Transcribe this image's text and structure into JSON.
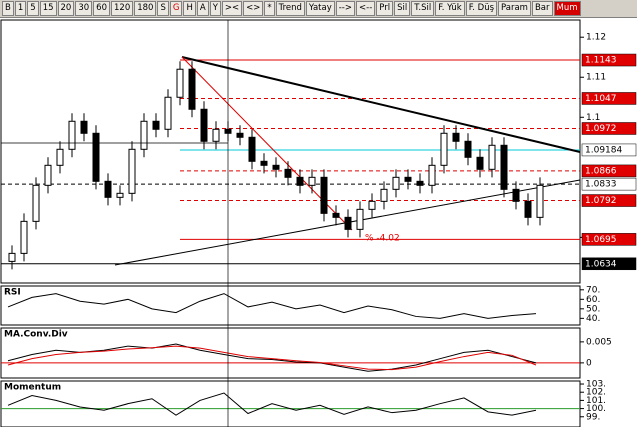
{
  "toolbar": {
    "buttons": [
      "B",
      "1",
      "5",
      "15",
      "20",
      "30",
      "60",
      "120",
      "180",
      "S",
      "G",
      "H",
      "A",
      "Y",
      "><",
      "<>",
      "*",
      "Trend",
      "Yatay",
      "-->",
      "<--",
      "Prl",
      "Sil",
      "T.Sil",
      "F. Yük",
      "F. Düş",
      "Param",
      "Bar",
      "Mum"
    ],
    "highlight_color": "#d40000"
  },
  "chart_data": [
    {
      "type": "candlestick",
      "ylim": [
        1.0586,
        1.1243
      ],
      "yticks": [
        1.12,
        1.11,
        1.1,
        1.07
      ],
      "open": [
        1.064,
        1.066,
        1.074,
        1.083,
        1.088,
        1.092,
        1.099,
        1.096,
        1.084,
        1.08,
        1.081,
        1.092,
        1.099,
        1.097,
        1.105,
        1.112,
        1.102,
        1.094,
        1.097,
        1.096,
        1.095,
        1.089,
        1.088,
        1.087,
        1.085,
        1.083,
        1.085,
        1.076,
        1.075,
        1.072,
        1.077,
        1.079,
        1.082,
        1.085,
        1.084,
        1.083,
        1.088,
        1.096,
        1.094,
        1.09,
        1.087,
        1.093,
        1.082,
        1.079,
        1.075
      ],
      "high": [
        1.068,
        1.076,
        1.085,
        1.09,
        1.094,
        1.101,
        1.101,
        1.098,
        1.086,
        1.083,
        1.094,
        1.101,
        1.101,
        1.107,
        1.114,
        1.114,
        1.104,
        1.099,
        1.099,
        1.098,
        1.097,
        1.091,
        1.09,
        1.089,
        1.087,
        1.087,
        1.087,
        1.078,
        1.077,
        1.079,
        1.081,
        1.084,
        1.087,
        1.087,
        1.086,
        1.09,
        1.098,
        1.098,
        1.096,
        1.092,
        1.095,
        1.095,
        1.084,
        1.081,
        1.085
      ],
      "low": [
        1.062,
        1.064,
        1.072,
        1.081,
        1.086,
        1.09,
        1.094,
        1.082,
        1.078,
        1.078,
        1.079,
        1.09,
        1.095,
        1.095,
        1.103,
        1.1,
        1.092,
        1.092,
        1.094,
        1.093,
        1.087,
        1.086,
        1.085,
        1.083,
        1.081,
        1.081,
        1.074,
        1.073,
        1.07,
        1.07,
        1.075,
        1.077,
        1.08,
        1.082,
        1.081,
        1.081,
        1.086,
        1.092,
        1.088,
        1.085,
        1.085,
        1.08,
        1.077,
        1.073,
        1.073
      ],
      "close": [
        1.066,
        1.074,
        1.083,
        1.088,
        1.092,
        1.099,
        1.096,
        1.084,
        1.08,
        1.081,
        1.092,
        1.099,
        1.097,
        1.105,
        1.112,
        1.102,
        1.094,
        1.097,
        1.096,
        1.095,
        1.089,
        1.088,
        1.087,
        1.085,
        1.083,
        1.085,
        1.076,
        1.075,
        1.072,
        1.077,
        1.079,
        1.082,
        1.085,
        1.084,
        1.083,
        1.088,
        1.096,
        1.094,
        1.09,
        1.087,
        1.093,
        1.082,
        1.079,
        1.075,
        1.083
      ],
      "levels": [
        {
          "value": 1.1143,
          "color": "#e00000",
          "style": "solid"
        },
        {
          "value": 1.1047,
          "color": "#e00000",
          "style": "dashed"
        },
        {
          "value": 1.0972,
          "color": "#e00000",
          "style": "dashed"
        },
        {
          "value": 1.09184,
          "color": "#00c8d8",
          "style": "solid"
        },
        {
          "value": 1.0866,
          "color": "#e00000",
          "style": "dashed"
        },
        {
          "value": 1.0833,
          "color": "#000000",
          "style": "dashed"
        },
        {
          "value": 1.0792,
          "color": "#e00000",
          "style": "dashed"
        },
        {
          "value": 1.0695,
          "color": "#e00000",
          "style": "solid"
        },
        {
          "value": 1.0634,
          "color": "#000000",
          "style": "solid"
        }
      ],
      "annotation": "% -4.02"
    },
    {
      "type": "line",
      "title": "RSI",
      "ylim": [
        33,
        74
      ],
      "yticks": [
        {
          "value": 70,
          "label": "70."
        },
        {
          "value": 60,
          "label": "60."
        },
        {
          "value": 50,
          "label": "50."
        },
        {
          "value": 40,
          "label": "40."
        }
      ],
      "series": [
        {
          "color": "#000000",
          "values": [
            52,
            62,
            66,
            58,
            55,
            60,
            50,
            46,
            58,
            66,
            52,
            57,
            50,
            54,
            46,
            53,
            49,
            42,
            40,
            45,
            40,
            43,
            45
          ]
        }
      ]
    },
    {
      "type": "line",
      "title": "MA.Conv.Div",
      "ylim": [
        -0.0036,
        0.0083
      ],
      "yticks": [
        0.005,
        0
      ],
      "ref_line": {
        "value": 0,
        "color": "#e00000"
      },
      "series": [
        {
          "color": "#000000",
          "values": [
            0.0005,
            0.002,
            0.003,
            0.0025,
            0.003,
            0.004,
            0.0035,
            0.0045,
            0.003,
            0.002,
            0.001,
            0.0008,
            0.0002,
            0,
            -0.001,
            -0.002,
            -0.0015,
            -0.0005,
            0.001,
            0.0025,
            0.003,
            0.0015,
            0
          ]
        },
        {
          "color": "#e00000",
          "values": [
            -0.0005,
            0.001,
            0.002,
            0.0025,
            0.0028,
            0.0033,
            0.0036,
            0.004,
            0.0035,
            0.0025,
            0.0015,
            0.001,
            0.0005,
            0.0001,
            -0.0007,
            -0.0015,
            -0.0016,
            -0.001,
            0.0003,
            0.0015,
            0.0025,
            0.0018,
            -0.0005
          ]
        }
      ]
    },
    {
      "type": "line",
      "title": "Momentum",
      "ylim": [
        97.75,
        103.37
      ],
      "yticks": [
        {
          "value": 103,
          "label": "103."
        },
        {
          "value": 102,
          "label": "102."
        },
        {
          "value": 101,
          "label": "101."
        },
        {
          "value": 100,
          "label": "100."
        },
        {
          "value": 99,
          "label": "99."
        }
      ],
      "ref_line": {
        "value": 100,
        "color": "#2a9d2a"
      },
      "series": [
        {
          "color": "#000000",
          "values": [
            100.4,
            101.6,
            101.0,
            100.2,
            99.8,
            100.6,
            101.2,
            99.2,
            101.0,
            101.9,
            99.4,
            100.6,
            99.8,
            100.4,
            99.3,
            100.2,
            99.5,
            99.8,
            100.6,
            101.3,
            99.6,
            99.2,
            99.8
          ]
        }
      ]
    }
  ]
}
